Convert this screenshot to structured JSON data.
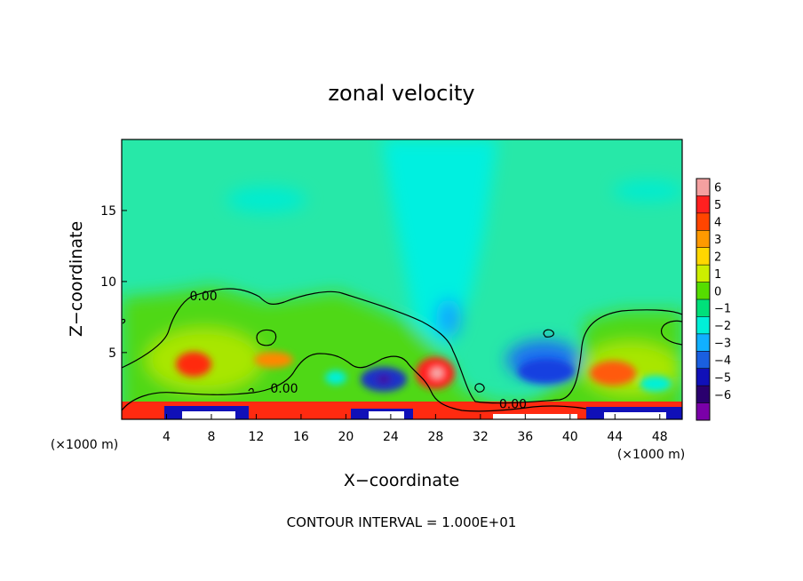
{
  "chart_data": {
    "type": "heatmap",
    "title": "zonal velocity",
    "xlabel": "X−coordinate",
    "ylabel": "Z−coordinate",
    "x_unit_left": "(×1000 m)",
    "x_unit_right": "(×1000 m)",
    "footer": "CONTOUR INTERVAL = 1.000E+01",
    "xlim": [
      0,
      50
    ],
    "ylim": [
      0.3,
      20
    ],
    "x_ticks": [
      4,
      8,
      12,
      16,
      20,
      24,
      28,
      32,
      36,
      40,
      44,
      48
    ],
    "x_tick_labels": [
      "4",
      "8",
      "12",
      "16",
      "20",
      "24",
      "28",
      "32",
      "36",
      "40",
      "44",
      "48"
    ],
    "y_ticks": [
      5,
      10,
      15
    ],
    "y_tick_labels": [
      "5",
      "10",
      "15"
    ],
    "contour_labels": [
      {
        "text": "0.00",
        "x": 7.3,
        "y": 9.0
      },
      {
        "text": "0.00",
        "x": 14.5,
        "y": 2.5
      },
      {
        "text": "0.00",
        "x": 34.9,
        "y": 1.4
      }
    ],
    "colorbar": {
      "levels": [
        "6",
        "5",
        "4",
        "3",
        "2",
        "1",
        "0",
        "−1",
        "−2",
        "−3",
        "−4",
        "−5",
        "−6"
      ],
      "colors": [
        "#f4a0a0",
        "#ff2020",
        "#ff4500",
        "#ff9900",
        "#ffd700",
        "#ccee00",
        "#55dd00",
        "#00e07a",
        "#00f0d8",
        "#11b0ff",
        "#1a5fe0",
        "#1010b8",
        "#2a006e",
        "#7a00a8"
      ]
    },
    "background_color": "#27e8a8",
    "grid": false,
    "legend": "right"
  }
}
